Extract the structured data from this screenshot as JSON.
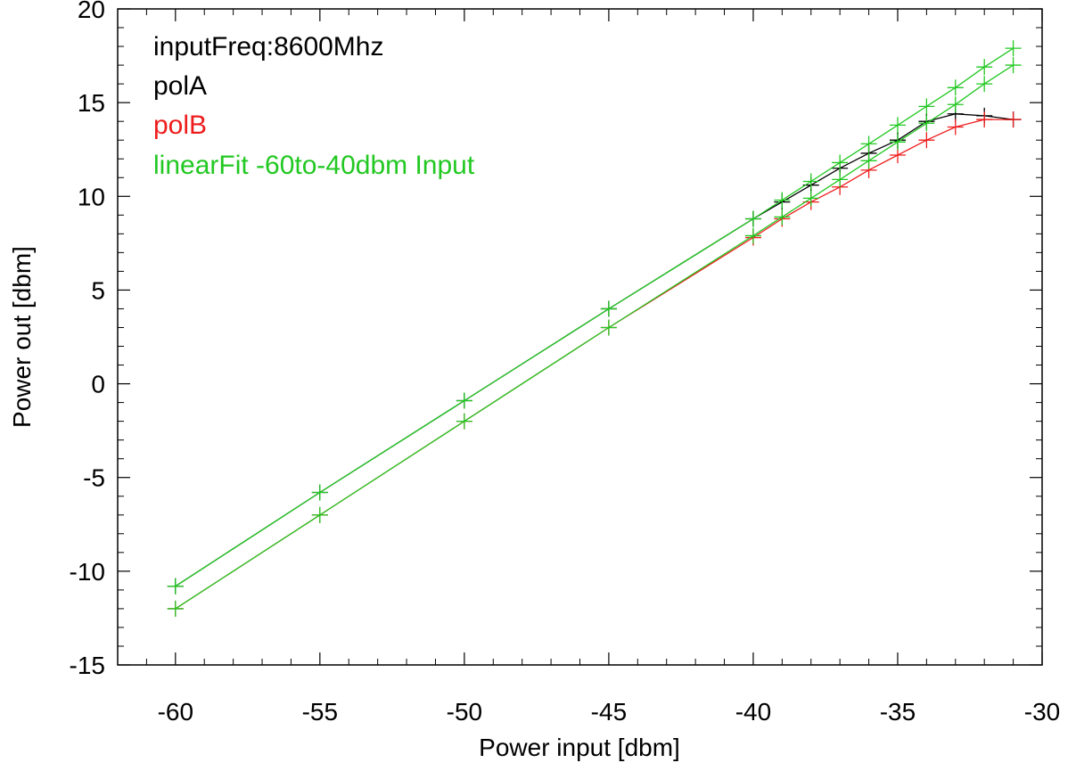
{
  "chart_data": {
    "type": "line",
    "title": "",
    "xlabel": "Power input [dbm]",
    "ylabel": "Power out [dbm]",
    "xlim": [
      -62,
      -30
    ],
    "ylim": [
      -15,
      20
    ],
    "xticks": [
      -60,
      -55,
      -50,
      -45,
      -40,
      -35,
      -30
    ],
    "yticks": [
      -15,
      -10,
      -5,
      0,
      5,
      10,
      15,
      20
    ],
    "xtick_labels": [
      "-60",
      "-55",
      "-50",
      "-45",
      "-40",
      "-35",
      "-30"
    ],
    "ytick_labels": [
      "-15",
      "-10",
      "-5",
      "0",
      "5",
      "10",
      "15",
      "20"
    ],
    "grid": false,
    "legend_position": "top-left",
    "legend": [
      {
        "text": "inputFreq:8600Mhz",
        "color": "#000000"
      },
      {
        "text": "polA",
        "color": "#000000"
      },
      {
        "text": "polB",
        "color": "#ee1c1c"
      },
      {
        "text": "linearFit -60to-40dbm Input",
        "color": "#22c822"
      }
    ],
    "x": [
      -60,
      -55,
      -50,
      -45,
      -40,
      -39,
      -38,
      -37,
      -36,
      -35,
      -34,
      -33,
      -32,
      -31
    ],
    "series": [
      {
        "name": "polA",
        "color": "#000000",
        "marker": "+",
        "values": [
          -10.8,
          -5.8,
          -0.9,
          4.0,
          8.8,
          9.7,
          10.6,
          11.5,
          12.3,
          13.0,
          14.0,
          14.4,
          14.3,
          14.1
        ]
      },
      {
        "name": "polB",
        "color": "#ee1c1c",
        "marker": "+",
        "values": [
          -12.0,
          -7.0,
          -2.0,
          3.0,
          7.8,
          8.8,
          9.7,
          10.5,
          11.4,
          12.2,
          13.0,
          13.7,
          14.1,
          14.1
        ]
      },
      {
        "name": "linearFit polA",
        "color": "#22c822",
        "marker": "+",
        "values": [
          -10.8,
          -5.8,
          -0.9,
          4.0,
          8.8,
          9.8,
          10.8,
          11.8,
          12.8,
          13.8,
          14.8,
          15.8,
          16.9,
          17.9
        ]
      },
      {
        "name": "linearFit polB",
        "color": "#22c822",
        "marker": "+",
        "values": [
          -12.0,
          -7.0,
          -2.0,
          3.0,
          7.9,
          8.9,
          9.9,
          10.9,
          11.9,
          12.9,
          13.9,
          14.9,
          16.0,
          17.0
        ]
      }
    ]
  }
}
